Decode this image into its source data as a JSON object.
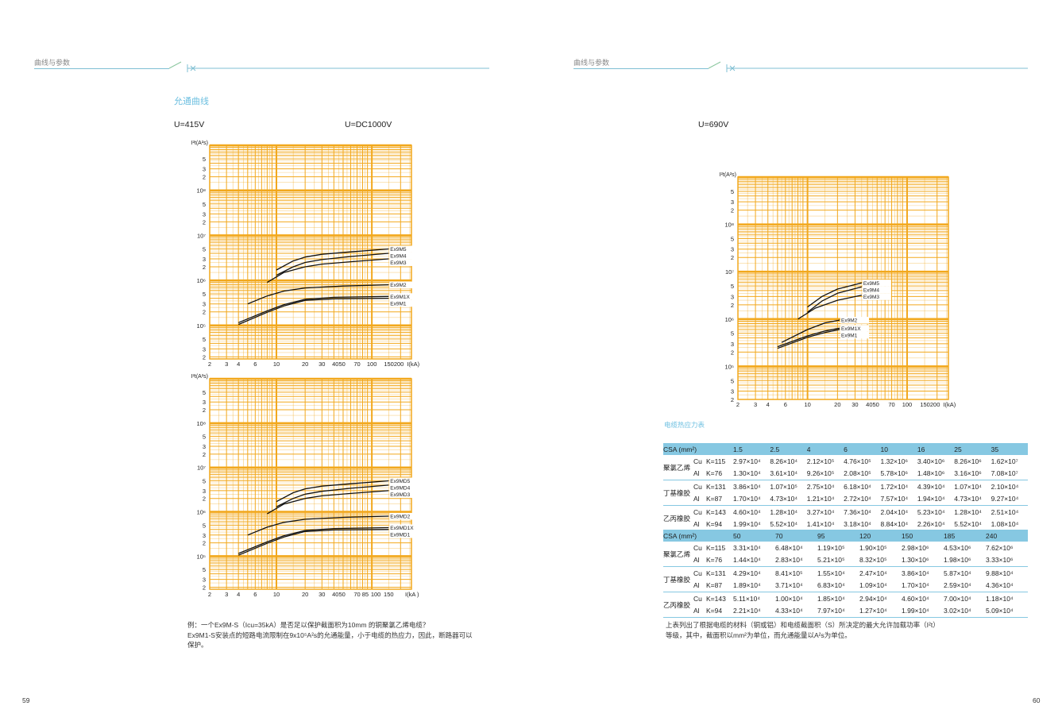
{
  "left_page": {
    "header": "曲线与参数",
    "section_title": "允通曲线",
    "voltage_a": "U=415V",
    "voltage_b": "U=DC1000V",
    "note_lines": [
      "例：一个Ex9M-S（Icu=35kA）是否足以保护截面积为10mm 的铜聚氯乙烯电缆？",
      "Ex9M1-S安装点的短路电流限制在9x10⁵A²s的允通能量，小于电缆的热应力，因此，断路器可以",
      "保护。"
    ],
    "page_number": "59"
  },
  "right_page": {
    "header": "曲线与参数",
    "voltage": "U=690V",
    "table_title": "电缆热应力表",
    "note_lines": [
      "上表列出了根据电缆的材料（铜或铝）和电缆截面积（S）所决定的最大允许加载功率（I²t）",
      "等级，其中，截面积以mm²为单位，而允通能量以A²s为单位。"
    ],
    "page_number": "60"
  },
  "colors": {
    "grid": "#f2a81d",
    "accent": "#6cbfe0",
    "table_head": "#86c8e2"
  },
  "tables": [
    {
      "header_label": "CSA (mm²)",
      "sizes": [
        "1.5",
        "2.5",
        "4",
        "6",
        "10",
        "16",
        "25",
        "35"
      ],
      "groups": [
        {
          "name": "聚氯乙烯",
          "rows": [
            {
              "metal": "Cu",
              "k": "K=115",
              "values": [
                "2.97×10⁴",
                "8.26×10⁴",
                "2.12×10⁵",
                "4.76×10⁵",
                "1.32×10⁶",
                "3.40×10⁶",
                "8.26×10⁶",
                "1.62×10⁷"
              ]
            },
            {
              "metal": "Al",
              "k": "K=76",
              "values": [
                "1.30×10⁴",
                "3.61×10⁴",
                "9.26×10⁵",
                "2.08×10⁵",
                "5.78×10⁶",
                "1.48×10⁶",
                "3.16×10⁶",
                "7.08×10⁷"
              ]
            }
          ]
        },
        {
          "name": "丁基橡胶",
          "rows": [
            {
              "metal": "Cu",
              "k": "K=131",
              "values": [
                "3.86×10⁴",
                "1.07×10⁵",
                "2.75×10⁴",
                "6.18×10⁴",
                "1.72×10⁴",
                "4.39×10⁴",
                "1.07×10⁴",
                "2.10×10⁴"
              ]
            },
            {
              "metal": "Al",
              "k": "K=87",
              "values": [
                "1.70×10⁴",
                "4.73×10⁴",
                "1.21×10⁴",
                "2.72×10⁴",
                "7.57×10⁴",
                "1.94×10⁴",
                "4.73×10⁴",
                "9.27×10⁴"
              ]
            }
          ]
        },
        {
          "name": "乙丙橡胶",
          "rows": [
            {
              "metal": "Cu",
              "k": "K=143",
              "values": [
                "4.60×10⁴",
                "1.28×10⁴",
                "3.27×10⁴",
                "7.36×10⁴",
                "2.04×10⁴",
                "5.23×10⁴",
                "1.28×10⁴",
                "2.51×10⁴"
              ]
            },
            {
              "metal": "Al",
              "k": "K=94",
              "values": [
                "1.99×10⁴",
                "5.52×10⁴",
                "1.41×10⁴",
                "3.18×10⁴",
                "8.84×10⁴",
                "2.26×10⁴",
                "5.52×10⁴",
                "1.08×10⁴"
              ]
            }
          ]
        }
      ]
    },
    {
      "header_label": "CSA (mm²)",
      "sizes": [
        "50",
        "70",
        "95",
        "120",
        "150",
        "185",
        "240"
      ],
      "groups": [
        {
          "name": "聚氯乙烯",
          "rows": [
            {
              "metal": "Cu",
              "k": "K=115",
              "values": [
                "3.31×10⁴",
                "6.48×10⁴",
                "1.19×10⁵",
                "1.90×10⁵",
                "2.98×10⁶",
                "4.53×10⁶",
                "7.62×10⁶"
              ]
            },
            {
              "metal": "Al",
              "k": "K=76",
              "values": [
                "1.44×10⁴",
                "2.83×10⁴",
                "5.21×10⁵",
                "8.32×10⁵",
                "1.30×10⁶",
                "1.98×10⁶",
                "3.33×10⁶"
              ]
            }
          ]
        },
        {
          "name": "丁基橡胶",
          "rows": [
            {
              "metal": "Cu",
              "k": "K=131",
              "values": [
                "4.29×10⁴",
                "8.41×10⁵",
                "1.55×10⁴",
                "2.47×10⁴",
                "3.86×10⁴",
                "5.87×10⁴",
                "9.88×10⁴"
              ]
            },
            {
              "metal": "Al",
              "k": "K=87",
              "values": [
                "1.89×10⁴",
                "3.71×10⁴",
                "6.83×10⁴",
                "1.09×10⁴",
                "1.70×10⁴",
                "2.59×10⁴",
                "4.36×10⁴"
              ]
            }
          ]
        },
        {
          "name": "乙丙橡胶",
          "rows": [
            {
              "metal": "Cu",
              "k": "K=143",
              "values": [
                "5.11×10⁴",
                "1.00×10⁴",
                "1.85×10⁴",
                "2.94×10⁴",
                "4.60×10⁴",
                "7.00×10⁴",
                "1.18×10⁴"
              ]
            },
            {
              "metal": "Al",
              "k": "K=94",
              "values": [
                "2.21×10⁴",
                "4.33×10⁴",
                "7.97×10⁴",
                "1.27×10⁴",
                "1.99×10⁴",
                "3.02×10⁴",
                "5.09×10⁴"
              ]
            }
          ]
        }
      ]
    }
  ],
  "chart_data": [
    {
      "type": "line",
      "title": "U=415V",
      "xlabel": "I(kA)",
      "ylabel": "I²t(A²s)",
      "xscale": "log",
      "yscale": "log",
      "xlim": [
        2,
        260
      ],
      "ylim": [
        18000,
        1000000000
      ],
      "grid": true,
      "xticks": [
        {
          "v": 2,
          "t": "2"
        },
        {
          "v": 3,
          "t": "3"
        },
        {
          "v": 4,
          "t": "4"
        },
        {
          "v": 6,
          "t": "6"
        },
        {
          "v": 10,
          "t": "10"
        },
        {
          "v": 20,
          "t": "20"
        },
        {
          "v": 30,
          "t": "30"
        },
        {
          "v": 45,
          "t": "4050"
        },
        {
          "v": 70,
          "t": "70"
        },
        {
          "v": 100,
          "t": "100"
        },
        {
          "v": 170,
          "t": "150200"
        }
      ],
      "yticks": [
        {
          "v": 500000000,
          "t": "5"
        },
        {
          "v": 300000000,
          "t": "3"
        },
        {
          "v": 200000000,
          "t": "2"
        },
        {
          "v": 100000000,
          "t": "10⁸"
        },
        {
          "v": 50000000,
          "t": "5"
        },
        {
          "v": 30000000,
          "t": "3"
        },
        {
          "v": 20000000,
          "t": "2"
        },
        {
          "v": 10000000,
          "t": "10⁷"
        },
        {
          "v": 5000000,
          "t": "5"
        },
        {
          "v": 3000000,
          "t": "3"
        },
        {
          "v": 2000000,
          "t": "2"
        },
        {
          "v": 1000000,
          "t": "10⁶"
        },
        {
          "v": 500000,
          "t": "5"
        },
        {
          "v": 300000,
          "t": "3"
        },
        {
          "v": 200000,
          "t": "2"
        },
        {
          "v": 100000,
          "t": "10⁵"
        },
        {
          "v": 50000,
          "t": "5"
        },
        {
          "v": 30000,
          "t": "3"
        },
        {
          "v": 20000,
          "t": "2"
        }
      ],
      "series": [
        {
          "name": "Ex9M5",
          "x": [
            10,
            15,
            20,
            30,
            60,
            150
          ],
          "y": [
            1700000,
            2700000,
            3300000,
            3800000,
            4300000,
            5000000
          ]
        },
        {
          "name": "Ex9M4",
          "x": [
            10,
            15,
            20,
            30,
            60,
            150
          ],
          "y": [
            1300000,
            2000000,
            2500000,
            2900000,
            3400000,
            4000000
          ]
        },
        {
          "name": "Ex9M3",
          "x": [
            8,
            12,
            20,
            30,
            60,
            150
          ],
          "y": [
            900000,
            1500000,
            2000000,
            2300000,
            2600000,
            3000000
          ]
        },
        {
          "name": "Ex9M2",
          "x": [
            5,
            8,
            12,
            20,
            50,
            150
          ],
          "y": [
            300000,
            450000,
            580000,
            680000,
            750000,
            800000
          ]
        },
        {
          "name": "Ex9M1X",
          "x": [
            4,
            8,
            12,
            20,
            40,
            150
          ],
          "y": [
            115000,
            210000,
            290000,
            380000,
            420000,
            440000
          ]
        },
        {
          "name": "Ex9M1",
          "x": [
            4,
            8,
            12,
            20,
            40,
            150
          ],
          "y": [
            105000,
            195000,
            270000,
            360000,
            390000,
            400000
          ]
        }
      ]
    },
    {
      "type": "line",
      "title": "U=DC1000V",
      "xlabel": "I(kA )",
      "ylabel": "I²t(A²s)",
      "xscale": "log",
      "yscale": "log",
      "xlim": [
        2,
        260
      ],
      "ylim": [
        18000,
        1000000000
      ],
      "grid": true,
      "xticks": [
        {
          "v": 2,
          "t": "2"
        },
        {
          "v": 3,
          "t": "3"
        },
        {
          "v": 4,
          "t": "4"
        },
        {
          "v": 6,
          "t": "6"
        },
        {
          "v": 10,
          "t": "10"
        },
        {
          "v": 20,
          "t": "20"
        },
        {
          "v": 30,
          "t": "30"
        },
        {
          "v": 45,
          "t": "4050"
        },
        {
          "v": 70,
          "t": "70"
        },
        {
          "v": 85,
          "t": "85"
        },
        {
          "v": 110,
          "t": "100"
        },
        {
          "v": 150,
          "t": "150"
        }
      ],
      "yticks": [
        {
          "v": 500000000,
          "t": "5"
        },
        {
          "v": 300000000,
          "t": "3"
        },
        {
          "v": 200000000,
          "t": "2"
        },
        {
          "v": 100000000,
          "t": "10⁸"
        },
        {
          "v": 50000000,
          "t": "5"
        },
        {
          "v": 30000000,
          "t": "3"
        },
        {
          "v": 20000000,
          "t": "2"
        },
        {
          "v": 10000000,
          "t": "10⁷"
        },
        {
          "v": 5000000,
          "t": "5"
        },
        {
          "v": 3000000,
          "t": "3"
        },
        {
          "v": 2000000,
          "t": "2"
        },
        {
          "v": 1000000,
          "t": "10⁶"
        },
        {
          "v": 500000,
          "t": "5"
        },
        {
          "v": 300000,
          "t": "3"
        },
        {
          "v": 200000,
          "t": "2"
        },
        {
          "v": 100000,
          "t": "10⁵"
        },
        {
          "v": 50000,
          "t": "5"
        },
        {
          "v": 30000,
          "t": "3"
        },
        {
          "v": 20000,
          "t": "2"
        }
      ],
      "series": [
        {
          "name": "Ex9MD5",
          "x": [
            10,
            15,
            20,
            30,
            60,
            150
          ],
          "y": [
            1700000,
            2700000,
            3300000,
            3800000,
            4300000,
            5000000
          ]
        },
        {
          "name": "Ex9MD4",
          "x": [
            10,
            15,
            20,
            30,
            60,
            150
          ],
          "y": [
            1300000,
            2000000,
            2500000,
            2900000,
            3400000,
            4000000
          ]
        },
        {
          "name": "Ex9MD3",
          "x": [
            8,
            12,
            20,
            30,
            60,
            150
          ],
          "y": [
            900000,
            1500000,
            2000000,
            2300000,
            2600000,
            3000000
          ]
        },
        {
          "name": "Ex9MD2",
          "x": [
            5,
            8,
            12,
            20,
            50,
            150
          ],
          "y": [
            300000,
            450000,
            580000,
            680000,
            750000,
            800000
          ]
        },
        {
          "name": "Ex9MD1X",
          "x": [
            4,
            8,
            12,
            20,
            40,
            150
          ],
          "y": [
            115000,
            210000,
            290000,
            380000,
            420000,
            440000
          ]
        },
        {
          "name": "Ex9MD1",
          "x": [
            4,
            8,
            12,
            20,
            40,
            150
          ],
          "y": [
            105000,
            195000,
            270000,
            360000,
            390000,
            400000
          ]
        }
      ]
    },
    {
      "type": "line",
      "title": "U=690V",
      "xlabel": "I(kA)",
      "ylabel": "I²t(A²s)",
      "xscale": "log",
      "yscale": "log",
      "xlim": [
        2,
        260
      ],
      "ylim": [
        20000,
        1000000000
      ],
      "grid": true,
      "xticks": [
        {
          "v": 2,
          "t": "2"
        },
        {
          "v": 3,
          "t": "3"
        },
        {
          "v": 4,
          "t": "4"
        },
        {
          "v": 6,
          "t": "6"
        },
        {
          "v": 10,
          "t": "10"
        },
        {
          "v": 20,
          "t": "20"
        },
        {
          "v": 30,
          "t": "30"
        },
        {
          "v": 45,
          "t": "4050"
        },
        {
          "v": 70,
          "t": "70"
        },
        {
          "v": 100,
          "t": "100"
        },
        {
          "v": 170,
          "t": "150200"
        }
      ],
      "yticks": [
        {
          "v": 500000000,
          "t": "5"
        },
        {
          "v": 300000000,
          "t": "3"
        },
        {
          "v": 200000000,
          "t": "2"
        },
        {
          "v": 100000000,
          "t": "10⁸"
        },
        {
          "v": 50000000,
          "t": "5"
        },
        {
          "v": 30000000,
          "t": "3"
        },
        {
          "v": 20000000,
          "t": "2"
        },
        {
          "v": 10000000,
          "t": "10⁷"
        },
        {
          "v": 5000000,
          "t": "5"
        },
        {
          "v": 3000000,
          "t": "3"
        },
        {
          "v": 2000000,
          "t": "2"
        },
        {
          "v": 1000000,
          "t": "10⁶"
        },
        {
          "v": 500000,
          "t": "5"
        },
        {
          "v": 300000,
          "t": "3"
        },
        {
          "v": 200000,
          "t": "2"
        },
        {
          "v": 100000,
          "t": "10⁵"
        },
        {
          "v": 50000,
          "t": "5"
        },
        {
          "v": 30000,
          "t": "3"
        },
        {
          "v": 20000,
          "t": "2"
        }
      ],
      "series": [
        {
          "name": "Ex9M5",
          "x": [
            10,
            14,
            20,
            35
          ],
          "y": [
            1800000,
            3000000,
            4300000,
            5800000
          ]
        },
        {
          "name": "Ex9M4",
          "x": [
            10,
            14,
            20,
            35
          ],
          "y": [
            1400000,
            2400000,
            3500000,
            4800000
          ]
        },
        {
          "name": "Ex9M3",
          "x": [
            8,
            12,
            20,
            35
          ],
          "y": [
            1000000,
            1700000,
            2500000,
            3200000
          ]
        },
        {
          "name": "Ex9M2",
          "x": [
            5.5,
            10,
            15,
            21
          ],
          "y": [
            320000,
            600000,
            830000,
            950000
          ]
        },
        {
          "name": "Ex9M1X",
          "x": [
            5,
            10,
            15,
            21
          ],
          "y": [
            260000,
            440000,
            560000,
            640000
          ]
        },
        {
          "name": "Ex9M1",
          "x": [
            5,
            10,
            15,
            21
          ],
          "y": [
            240000,
            410000,
            520000,
            600000
          ]
        }
      ]
    }
  ]
}
